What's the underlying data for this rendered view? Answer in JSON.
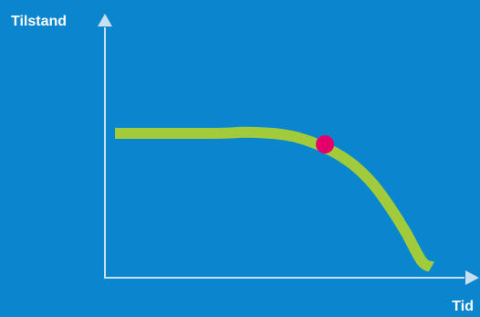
{
  "chart_data": {
    "type": "line",
    "title": "",
    "xlabel": "Tid",
    "ylabel": "Tilstand",
    "xlim": [
      0,
      100
    ],
    "ylim": [
      0,
      100
    ],
    "grid": false,
    "legend": "none",
    "series": [
      {
        "x": [
          0,
          10,
          20,
          30,
          35,
          40,
          45,
          50,
          55,
          60,
          65,
          70,
          75,
          80,
          85,
          90,
          95,
          98
        ],
        "y": [
          75,
          75,
          75,
          75,
          75.2,
          75.6,
          75.4,
          74.8,
          73.4,
          70.8,
          67.2,
          62.5,
          56,
          47,
          35,
          21,
          5,
          2
        ],
        "color": "#a2cb3c"
      }
    ],
    "marker": {
      "x": 65,
      "y": 69,
      "color": "#e3006b"
    },
    "colors": {
      "background": "#0a86cf",
      "axis": "#c8dff0",
      "text": "#ffffff"
    }
  }
}
